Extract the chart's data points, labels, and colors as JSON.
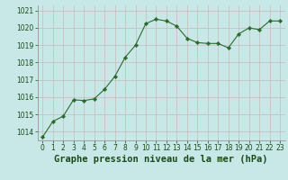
{
  "x": [
    0,
    1,
    2,
    3,
    4,
    5,
    6,
    7,
    8,
    9,
    10,
    11,
    12,
    13,
    14,
    15,
    16,
    17,
    18,
    19,
    20,
    21,
    22,
    23
  ],
  "y": [
    1013.7,
    1014.6,
    1014.9,
    1015.85,
    1015.8,
    1015.9,
    1016.45,
    1017.2,
    1018.3,
    1019.0,
    1020.25,
    1020.5,
    1020.4,
    1020.1,
    1019.4,
    1019.15,
    1019.1,
    1019.1,
    1018.85,
    1019.65,
    1020.0,
    1019.9,
    1020.4,
    1020.4
  ],
  "line_color": "#2d6a2d",
  "marker": "D",
  "marker_size": 2.2,
  "bg_color": "#c8e8e8",
  "grid_color": "#c8b8b8",
  "xlabel": "Graphe pression niveau de la mer (hPa)",
  "xlabel_color": "#1a4a1a",
  "xlabel_fontsize": 7.5,
  "ylim": [
    1013.5,
    1021.3
  ],
  "yticks": [
    1014,
    1015,
    1016,
    1017,
    1018,
    1019,
    1020,
    1021
  ],
  "xticks": [
    0,
    1,
    2,
    3,
    4,
    5,
    6,
    7,
    8,
    9,
    10,
    11,
    12,
    13,
    14,
    15,
    16,
    17,
    18,
    19,
    20,
    21,
    22,
    23
  ],
  "tick_color": "#1a4a1a",
  "tick_fontsize": 5.5,
  "spine_color": "#888888",
  "linewidth": 0.8
}
